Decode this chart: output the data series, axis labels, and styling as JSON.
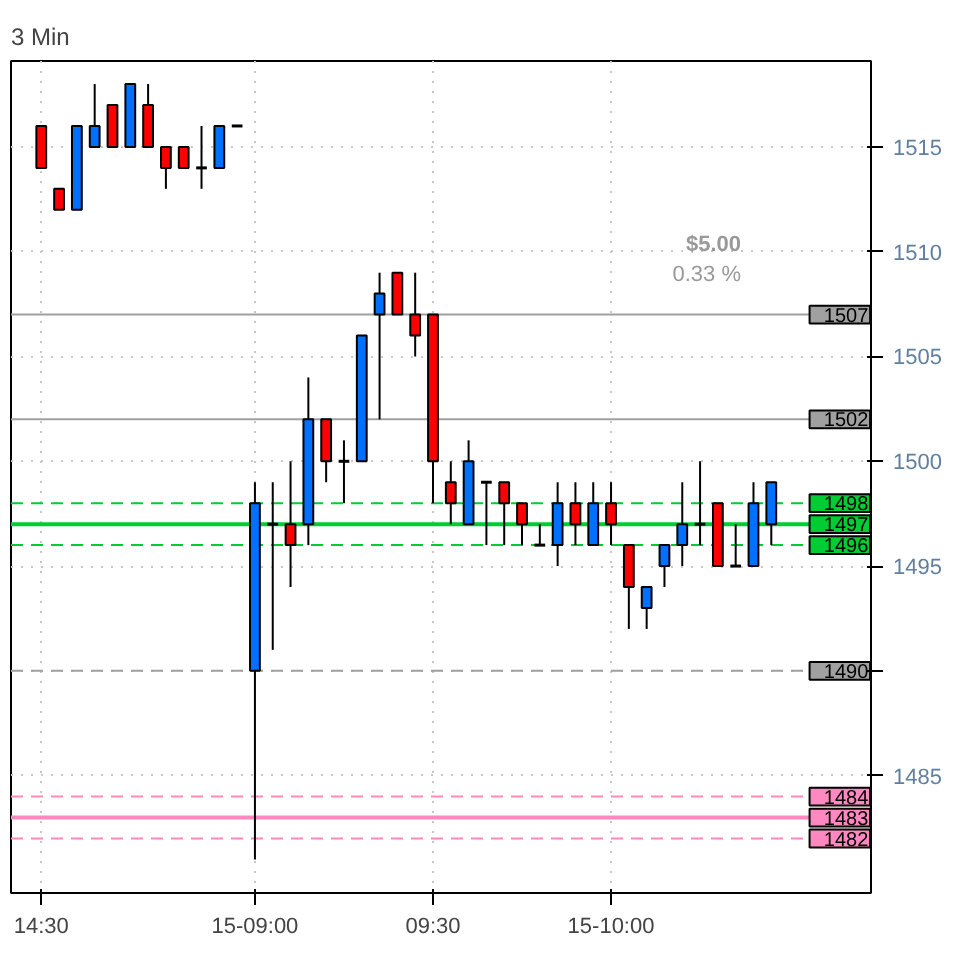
{
  "chart_data": {
    "type": "candlestick",
    "title": "3 Min",
    "categories": [
      "14:30",
      null,
      null,
      null,
      null,
      null,
      null,
      null,
      null,
      null,
      null,
      null,
      "15-09:00",
      null,
      null,
      null,
      null,
      null,
      null,
      null,
      null,
      null,
      "09:30",
      null,
      null,
      null,
      null,
      null,
      null,
      null,
      null,
      null,
      "15-10:00",
      null,
      null,
      null,
      null,
      null,
      null,
      null,
      null,
      null
    ],
    "ohlc": [
      [
        1516,
        1516,
        1514,
        1514
      ],
      [
        1513,
        1513,
        1512,
        1512
      ],
      [
        1512,
        1516,
        1512,
        1516
      ],
      [
        1515,
        1518,
        1515,
        1516
      ],
      [
        1517,
        1517,
        1515,
        1515
      ],
      [
        1515,
        1518,
        1515,
        1518
      ],
      [
        1517,
        1518,
        1515,
        1515
      ],
      [
        1515,
        1515,
        1513,
        1514
      ],
      [
        1515,
        1515,
        1514,
        1514
      ],
      [
        1514,
        1516,
        1513,
        1514
      ],
      [
        1514,
        1516,
        1514,
        1516
      ],
      [
        1516,
        1516,
        1516,
        1516
      ],
      [
        1490,
        1499,
        1481,
        1498
      ],
      [
        1497,
        1499,
        1491,
        1497
      ],
      [
        1497,
        1500,
        1494,
        1496
      ],
      [
        1497,
        1504,
        1496,
        1502
      ],
      [
        1502,
        1502,
        1499,
        1500
      ],
      [
        1500,
        1501,
        1498,
        1500
      ],
      [
        1500,
        1506,
        1500,
        1506
      ],
      [
        1507,
        1509,
        1502,
        1508
      ],
      [
        1509,
        1509,
        1507,
        1507
      ],
      [
        1507,
        1509,
        1505,
        1506
      ],
      [
        1507,
        1507,
        1498,
        1500
      ],
      [
        1499,
        1500,
        1497,
        1498
      ],
      [
        1497,
        1501,
        1497,
        1500
      ],
      [
        1499,
        1499,
        1496,
        1499
      ],
      [
        1499,
        1499,
        1496,
        1498
      ],
      [
        1498,
        1498,
        1496,
        1497
      ],
      [
        1496,
        1497,
        1496,
        1496
      ],
      [
        1496,
        1499,
        1495,
        1498
      ],
      [
        1498,
        1499,
        1496,
        1497
      ],
      [
        1496,
        1499,
        1496,
        1498
      ],
      [
        1498,
        1499,
        1496,
        1497
      ],
      [
        1496,
        1496,
        1492,
        1494
      ],
      [
        1493,
        1494,
        1492,
        1494
      ],
      [
        1495,
        1496,
        1494,
        1496
      ],
      [
        1496,
        1499,
        1495,
        1497
      ],
      [
        1497,
        1500,
        1496,
        1497
      ],
      [
        1498,
        1498,
        1495,
        1495
      ],
      [
        1495,
        1497,
        1495,
        1495
      ],
      [
        1495,
        1499,
        1495,
        1498
      ],
      [
        1497,
        1499,
        1496,
        1499
      ]
    ],
    "colors": [
      "#ff0000",
      "#ff0000",
      "#0070ff",
      "#0070ff",
      "#ff0000",
      "#0070ff",
      "#ff0000",
      "#ff0000",
      "#ff0000",
      "#000000",
      "#0070ff",
      "#000000",
      "#0070ff",
      "#000000",
      "#ff0000",
      "#0070ff",
      "#ff0000",
      "#000000",
      "#0070ff",
      "#0070ff",
      "#ff0000",
      "#ff0000",
      "#ff0000",
      "#ff0000",
      "#0070ff",
      "#000000",
      "#ff0000",
      "#ff0000",
      "#000000",
      "#0070ff",
      "#ff0000",
      "#0070ff",
      "#ff0000",
      "#ff0000",
      "#0070ff",
      "#0070ff",
      "#0070ff",
      "#000000",
      "#ff0000",
      "#000000",
      "#0070ff",
      "#0070ff"
    ],
    "ylim": [
      1479.4,
      1519.1
    ],
    "yticks": [
      1485,
      {
        "value": 1490,
        "label": null
      },
      1495,
      1500,
      1505,
      1510,
      1515
    ],
    "grid": true,
    "ref_lines": [
      {
        "axis": "y",
        "value": 1507,
        "label": "1507",
        "color": "#a0a0a0",
        "line_style": "solid"
      },
      {
        "axis": "y",
        "value": 1502,
        "label": "1502",
        "color": "#a0a0a0",
        "line_style": "solid"
      },
      {
        "axis": "y",
        "value": 1498,
        "label": "1498",
        "color": "#00cc33",
        "line_style": "dashed"
      },
      {
        "axis": "y",
        "value": 1497,
        "label": "1497",
        "color": "#00cc33",
        "line_style": "solid"
      },
      {
        "axis": "y",
        "value": 1496,
        "label": "1496",
        "color": "#00cc33",
        "line_style": "dashed"
      },
      {
        "axis": "y",
        "value": 1490,
        "label": "1490",
        "color": "#a0a0a0",
        "line_style": "dashed"
      },
      {
        "axis": "y",
        "value": 1484,
        "label": "1484",
        "color": "#ff88c0",
        "line_style": "dashed"
      },
      {
        "axis": "y",
        "value": 1483,
        "label": "1483",
        "color": "#ff88c0",
        "line_style": "solid"
      },
      {
        "axis": "y",
        "value": 1482,
        "label": "1482",
        "color": "#ff88c0",
        "line_style": "dashed"
      }
    ],
    "annotations": [
      "$5.00",
      "0.33 %"
    ]
  }
}
